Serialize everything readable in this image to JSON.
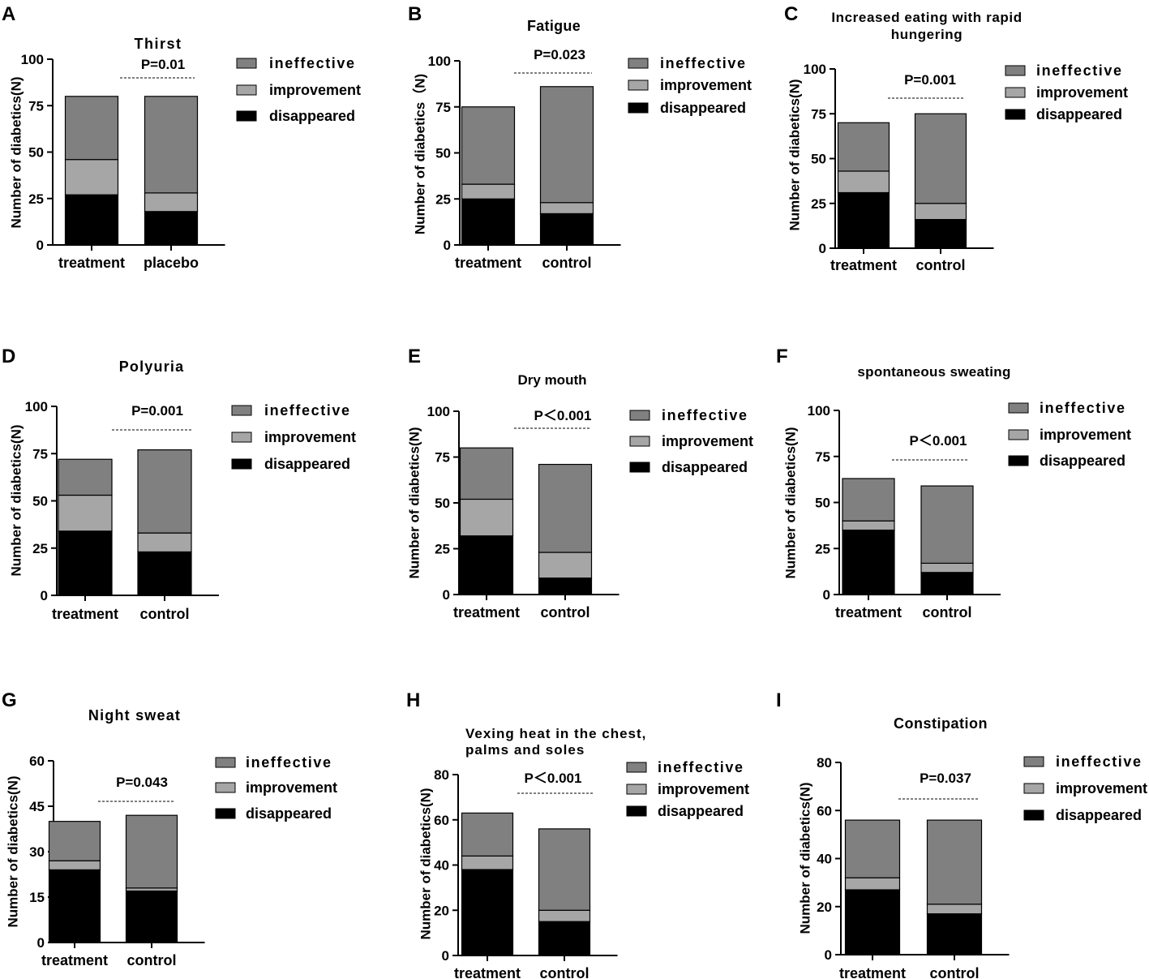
{
  "figure": {
    "colors": {
      "ineffective": "#808080",
      "improvement": "#a6a6a6",
      "disappeared": "#000000",
      "axis": "#000000"
    }
  },
  "chart_data": [
    {
      "panel_label": "A",
      "type": "bar",
      "stacked": true,
      "title": "Thirst",
      "pvalue": "P=0.01",
      "ylabel": "Number of diabetics(N)",
      "xlabel": "",
      "categories": [
        "treatment",
        "placebo"
      ],
      "ylim": [
        0,
        100
      ],
      "yticks": [
        0,
        25,
        50,
        75,
        100
      ],
      "series": [
        {
          "name": "disappeared",
          "values": [
            27,
            18
          ]
        },
        {
          "name": "improvement",
          "values": [
            19,
            10
          ]
        },
        {
          "name": "ineffective",
          "values": [
            34,
            52
          ]
        }
      ],
      "legend": [
        "ineffective",
        "improvement",
        "disappeared"
      ]
    },
    {
      "panel_label": "B",
      "type": "bar",
      "stacked": true,
      "title": "Fatigue",
      "pvalue": "P=0.023",
      "ylabel": "Number of diabetics（N)",
      "xlabel": "",
      "categories": [
        "treatment",
        "control"
      ],
      "ylim": [
        0,
        100
      ],
      "yticks": [
        0,
        25,
        50,
        75,
        100
      ],
      "series": [
        {
          "name": "disappeared",
          "values": [
            25,
            17
          ]
        },
        {
          "name": "improvement",
          "values": [
            8,
            6
          ]
        },
        {
          "name": "ineffective",
          "values": [
            42,
            63
          ]
        }
      ],
      "legend": [
        "ineffective",
        "improvement",
        "disappeared"
      ]
    },
    {
      "panel_label": "C",
      "type": "bar",
      "stacked": true,
      "title": "Increased eating with rapid hungering",
      "pvalue": "P=0.001",
      "ylabel": "Number of diabetics(N)",
      "xlabel": "",
      "categories": [
        "treatment",
        "control"
      ],
      "ylim": [
        0,
        100
      ],
      "yticks": [
        0,
        25,
        50,
        75,
        100
      ],
      "series": [
        {
          "name": "disappeared",
          "values": [
            31,
            16
          ]
        },
        {
          "name": "improvement",
          "values": [
            12,
            9
          ]
        },
        {
          "name": "ineffective",
          "values": [
            27,
            50
          ]
        }
      ],
      "legend": [
        "ineffective",
        "improvement",
        "disappeared"
      ]
    },
    {
      "panel_label": "D",
      "type": "bar",
      "stacked": true,
      "title": "Polyuria",
      "pvalue": "P=0.001",
      "ylabel": "Number of diabetics(N)",
      "xlabel": "",
      "categories": [
        "treatment",
        "control"
      ],
      "ylim": [
        0,
        100
      ],
      "yticks": [
        0,
        25,
        50,
        75,
        100
      ],
      "series": [
        {
          "name": "disappeared",
          "values": [
            34,
            23
          ]
        },
        {
          "name": "improvement",
          "values": [
            19,
            10
          ]
        },
        {
          "name": "ineffective",
          "values": [
            19,
            44
          ]
        }
      ],
      "legend": [
        "ineffective",
        "improvement",
        "disappeared"
      ]
    },
    {
      "panel_label": "E",
      "type": "bar",
      "stacked": true,
      "title": "Dry mouth",
      "pvalue": "P＜0.001",
      "ylabel": "Number of diabetics(N)",
      "xlabel": "",
      "categories": [
        "treatment",
        "control"
      ],
      "ylim": [
        0,
        100
      ],
      "yticks": [
        0,
        25,
        50,
        75,
        100
      ],
      "series": [
        {
          "name": "disappeared",
          "values": [
            32,
            9
          ]
        },
        {
          "name": "improvement",
          "values": [
            20,
            14
          ]
        },
        {
          "name": "ineffective",
          "values": [
            28,
            48
          ]
        }
      ],
      "legend": [
        "ineffective",
        "improvement",
        "disappeared"
      ]
    },
    {
      "panel_label": "F",
      "type": "bar",
      "stacked": true,
      "title": "spontaneous sweating",
      "pvalue": "P＜0.001",
      "ylabel": "Number of diabetics(N)",
      "xlabel": "",
      "categories": [
        "treatment",
        "control"
      ],
      "ylim": [
        0,
        100
      ],
      "yticks": [
        0,
        25,
        50,
        75,
        100
      ],
      "series": [
        {
          "name": "disappeared",
          "values": [
            35,
            12
          ]
        },
        {
          "name": "improvement",
          "values": [
            5,
            5
          ]
        },
        {
          "name": "ineffective",
          "values": [
            23,
            42
          ]
        }
      ],
      "legend": [
        "ineffective",
        "improvement",
        "disappeared"
      ]
    },
    {
      "panel_label": "G",
      "type": "bar",
      "stacked": true,
      "title": "Night sweat",
      "pvalue": "P=0.043",
      "ylabel": "Number of diabetics(N)",
      "xlabel": "",
      "categories": [
        "treatment",
        "control"
      ],
      "ylim": [
        0,
        60
      ],
      "yticks": [
        0,
        15,
        30,
        45,
        60
      ],
      "series": [
        {
          "name": "disappeared",
          "values": [
            24,
            17
          ]
        },
        {
          "name": "improvement",
          "values": [
            3,
            1
          ]
        },
        {
          "name": "ineffective",
          "values": [
            13,
            24
          ]
        }
      ],
      "legend": [
        "ineffective",
        "improvement",
        "disappeared"
      ]
    },
    {
      "panel_label": "H",
      "type": "bar",
      "stacked": true,
      "title": "Vexing heat in the chest, palms and soles",
      "pvalue": "P＜0.001",
      "ylabel": "Number of diabetics(N)",
      "xlabel": "",
      "categories": [
        "treatment",
        "control"
      ],
      "ylim": [
        0,
        80
      ],
      "yticks": [
        0,
        20,
        40,
        60,
        80
      ],
      "series": [
        {
          "name": "disappeared",
          "values": [
            38,
            15
          ]
        },
        {
          "name": "improvement",
          "values": [
            6,
            5
          ]
        },
        {
          "name": "ineffective",
          "values": [
            19,
            36
          ]
        }
      ],
      "legend": [
        "ineffective",
        "improvement",
        "disappeared"
      ]
    },
    {
      "panel_label": "I",
      "type": "bar",
      "stacked": true,
      "title": "Constipation",
      "pvalue": "P=0.037",
      "ylabel": "Number of diabetics(N)",
      "xlabel": "",
      "categories": [
        "treatment",
        "control"
      ],
      "ylim": [
        0,
        80
      ],
      "yticks": [
        0,
        20,
        40,
        60,
        80
      ],
      "series": [
        {
          "name": "disappeared",
          "values": [
            27,
            17
          ]
        },
        {
          "name": "improvement",
          "values": [
            5,
            4
          ]
        },
        {
          "name": "ineffective",
          "values": [
            24,
            35
          ]
        }
      ],
      "legend": [
        "ineffective",
        "improvement",
        "disappeared"
      ]
    }
  ]
}
